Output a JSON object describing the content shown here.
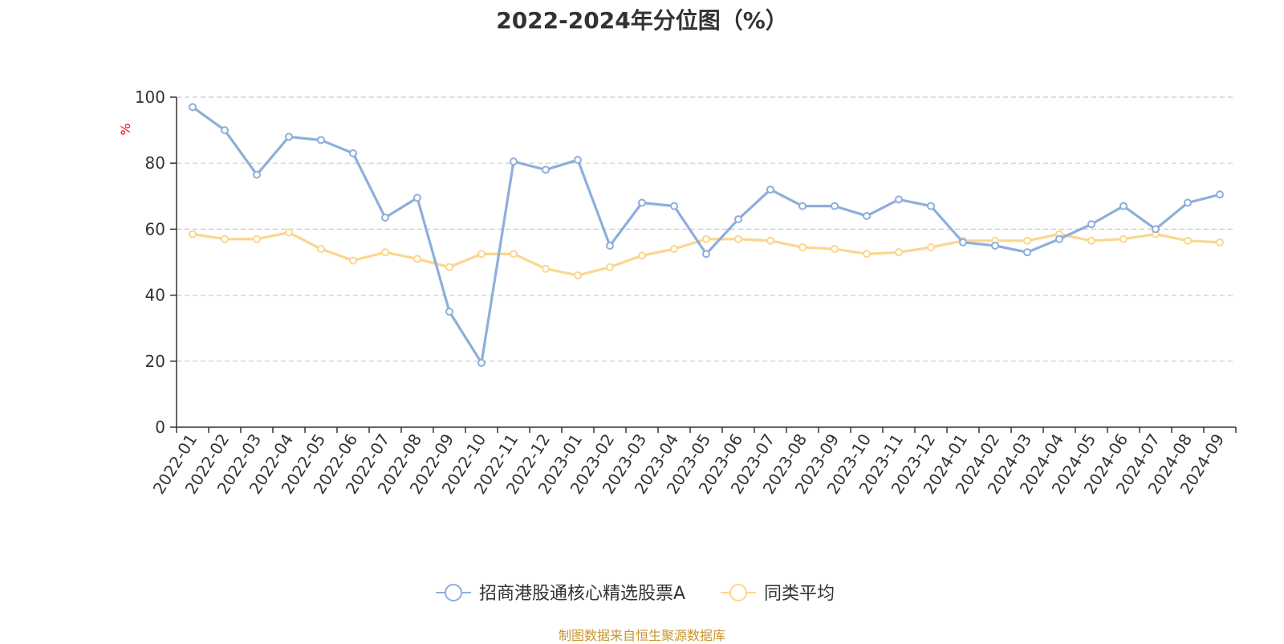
{
  "title": "2022-2024年分位图（%）",
  "source": "制图数据来自恒生聚源数据库",
  "chart_data": {
    "type": "line",
    "title": "2022-2024年分位图（%）",
    "ylabel": "%",
    "ylim": [
      0,
      100
    ],
    "yticks": [
      0,
      20,
      40,
      60,
      80,
      100
    ],
    "grid": true,
    "legend_position": "bottom",
    "categories": [
      "2022-01",
      "2022-02",
      "2022-03",
      "2022-04",
      "2022-05",
      "2022-06",
      "2022-07",
      "2022-08",
      "2022-09",
      "2022-10",
      "2022-11",
      "2022-12",
      "2023-01",
      "2023-02",
      "2023-03",
      "2023-04",
      "2023-05",
      "2023-06",
      "2023-07",
      "2023-08",
      "2023-09",
      "2023-10",
      "2023-11",
      "2023-12",
      "2024-01",
      "2024-02",
      "2024-03",
      "2024-04",
      "2024-05",
      "2024-06",
      "2024-07",
      "2024-08",
      "2024-09"
    ],
    "series": [
      {
        "name": "招商港股通核心精选股票A",
        "color": "#8eaedb",
        "values": [
          97,
          90,
          76.5,
          88,
          87,
          83,
          63.5,
          69.5,
          35,
          19.5,
          80.5,
          78,
          81,
          55,
          68,
          67,
          52.5,
          63,
          72,
          67,
          67,
          64,
          69,
          67,
          56,
          55,
          53,
          57,
          61.5,
          67,
          60,
          68,
          70.5
        ]
      },
      {
        "name": "同类平均",
        "color": "#fcd68e",
        "values": [
          58.5,
          57,
          57,
          59,
          54,
          50.5,
          53,
          51,
          48.5,
          52.5,
          52.5,
          48,
          46,
          48.5,
          52,
          54,
          57,
          57,
          56.5,
          54.5,
          54,
          52.5,
          53,
          54.5,
          56.5,
          56.5,
          56.5,
          58.5,
          56.5,
          57,
          58.5,
          56.5,
          56
        ]
      }
    ]
  }
}
